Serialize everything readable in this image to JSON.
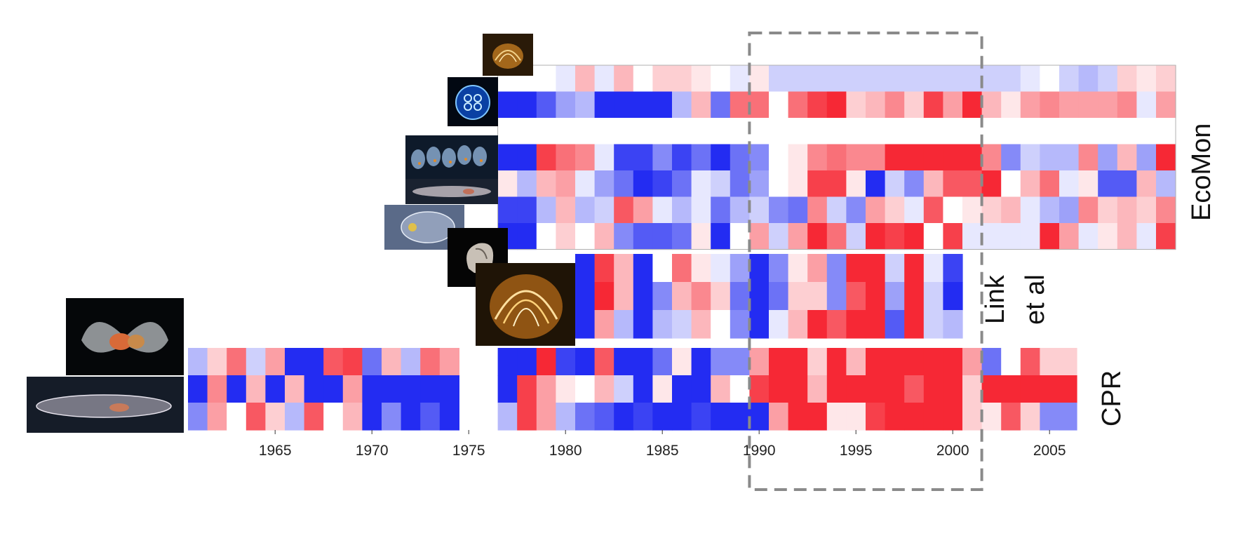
{
  "chart_data": {
    "type": "heatmap",
    "title": "",
    "xlabel": "",
    "ylabel": "",
    "x_ticks": [
      "1965",
      "1970",
      "1975",
      "1980",
      "1985",
      "1990",
      "1995",
      "2000",
      "2005"
    ],
    "x_range": [
      1961,
      2006
    ],
    "colormap": {
      "low": "#0a14f0",
      "mid": "#ffffff",
      "high": "#f5101e"
    },
    "highlight_years": [
      1990,
      2001
    ],
    "panels": [
      {
        "name": "EcoMon",
        "start_year": 1977,
        "rows": [
          [
            0.0,
            0.0,
            0.0,
            -0.1,
            0.3,
            -0.1,
            0.3,
            0.0,
            0.2,
            0.2,
            0.1,
            0.0,
            -0.1,
            0.1,
            -0.2,
            -0.2,
            -0.2,
            -0.2,
            -0.2,
            -0.2,
            -0.2,
            -0.2,
            -0.2,
            -0.2,
            -0.2,
            -0.2,
            -0.2,
            -0.1,
            0.0,
            -0.2,
            -0.3,
            -0.2,
            0.2,
            0.1,
            0.2,
            0.3,
            0.0
          ],
          [
            -0.9,
            -0.9,
            -0.7,
            -0.4,
            -0.3,
            -0.9,
            -0.9,
            -0.9,
            -0.9,
            -0.3,
            0.3,
            -0.6,
            0.6,
            0.6,
            0.0,
            0.6,
            0.8,
            0.9,
            0.2,
            0.3,
            0.5,
            0.2,
            0.8,
            0.4,
            0.9,
            0.3,
            0.1,
            0.4,
            0.5,
            0.4,
            0.4,
            0.4,
            0.5,
            -0.1,
            0.4,
            0.5,
            0.6
          ],
          [
            0,
            0,
            0,
            0,
            0,
            0,
            0,
            0,
            0,
            0,
            0,
            0,
            0,
            0,
            0,
            0,
            0,
            0,
            0,
            0,
            0,
            0,
            0,
            0,
            0,
            0,
            0,
            0,
            0,
            0,
            0,
            0,
            0,
            0,
            0,
            0,
            0
          ],
          [
            -0.9,
            -0.9,
            0.8,
            0.6,
            0.5,
            -0.1,
            -0.8,
            -0.8,
            -0.5,
            -0.8,
            -0.6,
            -0.9,
            -0.6,
            -0.5,
            0.0,
            0.1,
            0.5,
            0.6,
            0.5,
            0.5,
            0.9,
            0.9,
            0.9,
            0.9,
            0.9,
            0.5,
            -0.5,
            -0.2,
            -0.3,
            -0.3,
            0.5,
            -0.4,
            0.3,
            -0.4,
            0.9,
            -0.2,
            -0.2
          ],
          [
            0.1,
            -0.3,
            0.3,
            0.4,
            -0.1,
            -0.4,
            -0.6,
            -0.9,
            -0.8,
            -0.6,
            -0.1,
            -0.2,
            -0.6,
            -0.4,
            0.0,
            0.1,
            0.8,
            0.8,
            0.1,
            -0.9,
            -0.2,
            -0.5,
            0.3,
            0.7,
            0.7,
            0.9,
            0.0,
            0.3,
            0.6,
            -0.1,
            0.1,
            -0.7,
            -0.7,
            0.3,
            -0.3,
            -0.2,
            0.1
          ],
          [
            -0.8,
            -0.8,
            -0.3,
            0.3,
            -0.3,
            -0.2,
            0.7,
            0.4,
            -0.1,
            -0.3,
            -0.1,
            -0.6,
            -0.3,
            -0.2,
            -0.5,
            -0.6,
            0.5,
            -0.2,
            -0.5,
            0.4,
            0.2,
            -0.1,
            0.7,
            0.0,
            0.1,
            0.2,
            0.3,
            -0.1,
            -0.3,
            -0.4,
            0.5,
            0.2,
            0.3,
            0.2,
            0.5,
            0.3,
            0.1
          ],
          [
            -0.9,
            -0.9,
            0.0,
            0.2,
            0.0,
            0.3,
            -0.5,
            -0.7,
            -0.7,
            -0.6,
            0.1,
            -0.9,
            0.0,
            0.4,
            -0.2,
            0.4,
            0.9,
            0.6,
            -0.2,
            0.9,
            0.8,
            0.9,
            0.0,
            0.8,
            -0.1,
            -0.1,
            -0.1,
            -0.1,
            0.9,
            0.4,
            -0.1,
            0.1,
            0.3,
            -0.1,
            0.8,
            0.3,
            0.4
          ]
        ]
      },
      {
        "name": "Link et al",
        "start_year": 1981,
        "rows": [
          [
            -0.9,
            0.8,
            0.3,
            -0.9,
            0.0,
            0.6,
            0.1,
            -0.1,
            -0.4,
            -0.9,
            -0.5,
            0.1,
            0.4,
            -0.5,
            0.9,
            0.9,
            -0.2,
            0.9,
            -0.1,
            -0.8
          ],
          [
            -0.9,
            0.9,
            0.3,
            -0.9,
            -0.5,
            0.3,
            0.5,
            0.2,
            -0.6,
            -0.9,
            -0.6,
            0.2,
            0.2,
            -0.5,
            0.7,
            0.9,
            -0.4,
            0.9,
            -0.2,
            -0.9
          ],
          [
            -0.9,
            0.4,
            -0.3,
            -0.9,
            -0.3,
            -0.2,
            0.3,
            0.0,
            -0.5,
            -0.9,
            -0.1,
            0.3,
            0.9,
            0.7,
            0.9,
            0.9,
            -0.7,
            0.9,
            -0.2,
            -0.3
          ]
        ]
      },
      {
        "name": "CPR",
        "start_year": 1961,
        "rows": [
          [
            -0.3,
            0.2,
            0.6,
            -0.2,
            0.4,
            -0.9,
            -0.9,
            0.7,
            0.8,
            -0.6,
            0.3,
            -0.3,
            0.6,
            0.4,
            null,
            null,
            -0.9,
            -0.9,
            0.9,
            -0.8,
            -0.9,
            0.7,
            -0.9,
            -0.9,
            -0.6,
            0.1,
            -0.9,
            -0.5,
            -0.5,
            0.4,
            0.9,
            0.9,
            0.2,
            0.9,
            0.3,
            0.9,
            0.9,
            0.9,
            0.9,
            0.9,
            0.4,
            -0.6,
            0.0,
            0.7,
            0.2,
            0.2
          ],
          [
            -0.9,
            0.5,
            -0.9,
            0.3,
            -0.9,
            0.3,
            -0.9,
            -0.9,
            0.4,
            -0.9,
            -0.9,
            -0.9,
            -0.9,
            -0.9,
            null,
            null,
            -0.9,
            0.8,
            0.4,
            0.1,
            0.0,
            0.3,
            -0.2,
            -0.9,
            0.1,
            -0.9,
            -0.9,
            0.3,
            0.0,
            0.8,
            0.9,
            0.9,
            0.3,
            0.9,
            0.9,
            0.9,
            0.9,
            0.7,
            0.9,
            0.9,
            0.2,
            0.9,
            0.9,
            0.9,
            0.9,
            0.9
          ],
          [
            -0.5,
            0.4,
            0.0,
            0.7,
            0.2,
            -0.3,
            0.7,
            0.0,
            0.3,
            -0.9,
            -0.5,
            -0.9,
            -0.7,
            -0.9,
            null,
            null,
            -0.3,
            0.8,
            0.4,
            -0.3,
            -0.6,
            -0.7,
            -0.9,
            -0.8,
            -0.9,
            -0.9,
            -0.8,
            -0.9,
            -0.9,
            -0.9,
            0.4,
            0.9,
            0.9,
            0.1,
            0.1,
            0.8,
            0.9,
            0.9,
            0.9,
            0.9,
            0.2,
            0.1,
            0.7,
            0.2,
            -0.5,
            -0.5
          ]
        ]
      }
    ]
  },
  "panel_labels": {
    "ecomon": "EcoMon",
    "link_line1": "Link",
    "link_line2": "et al",
    "cpr": "CPR"
  },
  "thumbnails": [
    {
      "id": "ctenophore-top",
      "icon": "comb-jelly-icon"
    },
    {
      "id": "moon-jelly",
      "icon": "jellyfish-icon"
    },
    {
      "id": "salp-chain",
      "icon": "salp-chain-icon"
    },
    {
      "id": "salp-pair",
      "icon": "salp-icon"
    },
    {
      "id": "larvacean",
      "icon": "larvacean-icon"
    },
    {
      "id": "pteropod-dark",
      "icon": "pteropod-icon"
    },
    {
      "id": "ctenophore-large",
      "icon": "comb-jelly-icon"
    },
    {
      "id": "sea-butterfly",
      "icon": "sea-butterfly-icon"
    },
    {
      "id": "salp-long",
      "icon": "salp-icon"
    }
  ]
}
